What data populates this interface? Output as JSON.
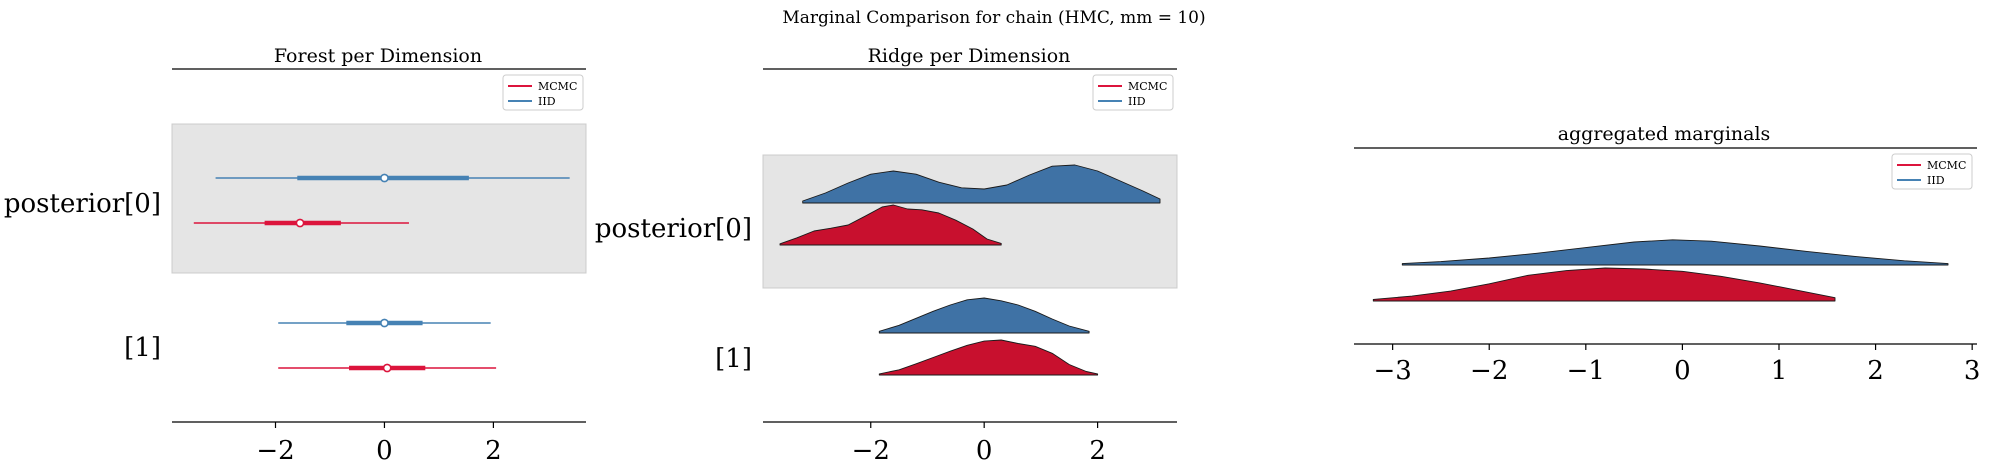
{
  "suptitle": "Marginal Comparison for chain (HMC, mm = 10)",
  "colors": {
    "MCMC": "#dc143c",
    "MCMC_dark": "#c8102e",
    "IID": "#4682b4",
    "IID_dark": "#3f72a5",
    "band": "#e5e5e5"
  },
  "legend": {
    "entries": [
      "MCMC",
      "IID"
    ],
    "placement": "upper right"
  },
  "chart_data": [
    {
      "type": "forest",
      "title": "Forest per Dimension",
      "xlim": [
        -3.9,
        3.7
      ],
      "xticks": [
        -2,
        0,
        2
      ],
      "xtick_labels": [
        "−2",
        "0",
        "2"
      ],
      "rows": [
        {
          "label": "posterior[0]",
          "shaded": true,
          "series": [
            {
              "name": "IID",
              "min": -3.1,
              "q25": -1.6,
              "median": 0.0,
              "q75": 1.55,
              "max": 3.4
            },
            {
              "name": "MCMC",
              "min": -3.5,
              "q25": -2.2,
              "median": -1.55,
              "q75": -0.8,
              "max": 0.45
            }
          ]
        },
        {
          "label": "[1]",
          "shaded": false,
          "series": [
            {
              "name": "IID",
              "min": -1.95,
              "q25": -0.7,
              "median": 0.0,
              "q75": 0.7,
              "max": 1.95
            },
            {
              "name": "MCMC",
              "min": -1.95,
              "q25": -0.65,
              "median": 0.05,
              "q75": 0.75,
              "max": 2.05
            }
          ]
        }
      ]
    },
    {
      "type": "ridge",
      "title": "Ridge per Dimension",
      "xlim": [
        -3.9,
        3.4
      ],
      "xticks": [
        -2,
        0,
        2
      ],
      "xtick_labels": [
        "−2",
        "0",
        "2"
      ],
      "rows": [
        {
          "label": "posterior[0]",
          "shaded": true,
          "series": [
            {
              "name": "IID",
              "x": [
                -3.2,
                -2.8,
                -2.4,
                -2.0,
                -1.6,
                -1.2,
                -0.8,
                -0.4,
                0.0,
                0.4,
                0.8,
                1.2,
                1.6,
                2.0,
                2.4,
                2.8,
                3.1
              ],
              "density": [
                0.05,
                0.25,
                0.5,
                0.72,
                0.8,
                0.72,
                0.52,
                0.38,
                0.35,
                0.45,
                0.7,
                0.92,
                0.95,
                0.8,
                0.55,
                0.3,
                0.1
              ]
            },
            {
              "name": "MCMC",
              "x": [
                -3.6,
                -3.3,
                -3.0,
                -2.7,
                -2.4,
                -2.1,
                -1.8,
                -1.6,
                -1.35,
                -1.1,
                -0.8,
                -0.5,
                -0.2,
                0.05,
                0.3
              ],
              "density": [
                0.03,
                0.18,
                0.35,
                0.42,
                0.5,
                0.72,
                0.95,
                1.0,
                0.9,
                0.88,
                0.8,
                0.62,
                0.4,
                0.15,
                0.04
              ]
            }
          ]
        },
        {
          "label": "[1]",
          "shaded": false,
          "series": [
            {
              "name": "IID",
              "x": [
                -1.85,
                -1.5,
                -1.2,
                -0.9,
                -0.6,
                -0.3,
                0.0,
                0.3,
                0.6,
                0.9,
                1.2,
                1.5,
                1.85
              ],
              "density": [
                0.05,
                0.22,
                0.42,
                0.62,
                0.8,
                0.95,
                1.0,
                0.92,
                0.8,
                0.62,
                0.4,
                0.2,
                0.05
              ]
            },
            {
              "name": "MCMC",
              "x": [
                -1.85,
                -1.5,
                -1.2,
                -0.9,
                -0.6,
                -0.3,
                0.0,
                0.3,
                0.6,
                0.9,
                1.2,
                1.5,
                1.8,
                2.0
              ],
              "density": [
                0.03,
                0.15,
                0.32,
                0.5,
                0.68,
                0.85,
                0.97,
                1.0,
                0.9,
                0.82,
                0.62,
                0.3,
                0.1,
                0.03
              ]
            }
          ]
        }
      ]
    },
    {
      "type": "ridge",
      "title": "aggregated marginals",
      "xlim": [
        -3.4,
        3.05
      ],
      "xticks": [
        -3,
        -2,
        -1,
        0,
        1,
        2,
        3
      ],
      "xtick_labels": [
        "−3",
        "−2",
        "−1",
        "0",
        "1",
        "2",
        "3"
      ],
      "rows": [
        {
          "label": "",
          "shaded": false,
          "series": [
            {
              "name": "IID",
              "x": [
                -2.9,
                -2.5,
                -2.0,
                -1.5,
                -1.0,
                -0.5,
                -0.1,
                0.3,
                0.8,
                1.3,
                1.8,
                2.3,
                2.75
              ],
              "density": [
                0.05,
                0.12,
                0.25,
                0.42,
                0.62,
                0.82,
                0.9,
                0.85,
                0.68,
                0.48,
                0.3,
                0.15,
                0.05
              ]
            },
            {
              "name": "MCMC",
              "x": [
                -3.2,
                -2.8,
                -2.4,
                -2.0,
                -1.6,
                -1.2,
                -0.8,
                -0.4,
                0.0,
                0.4,
                0.8,
                1.2,
                1.58
              ],
              "density": [
                0.05,
                0.15,
                0.3,
                0.52,
                0.78,
                0.92,
                1.0,
                0.97,
                0.9,
                0.75,
                0.55,
                0.32,
                0.1
              ]
            }
          ]
        }
      ]
    }
  ]
}
